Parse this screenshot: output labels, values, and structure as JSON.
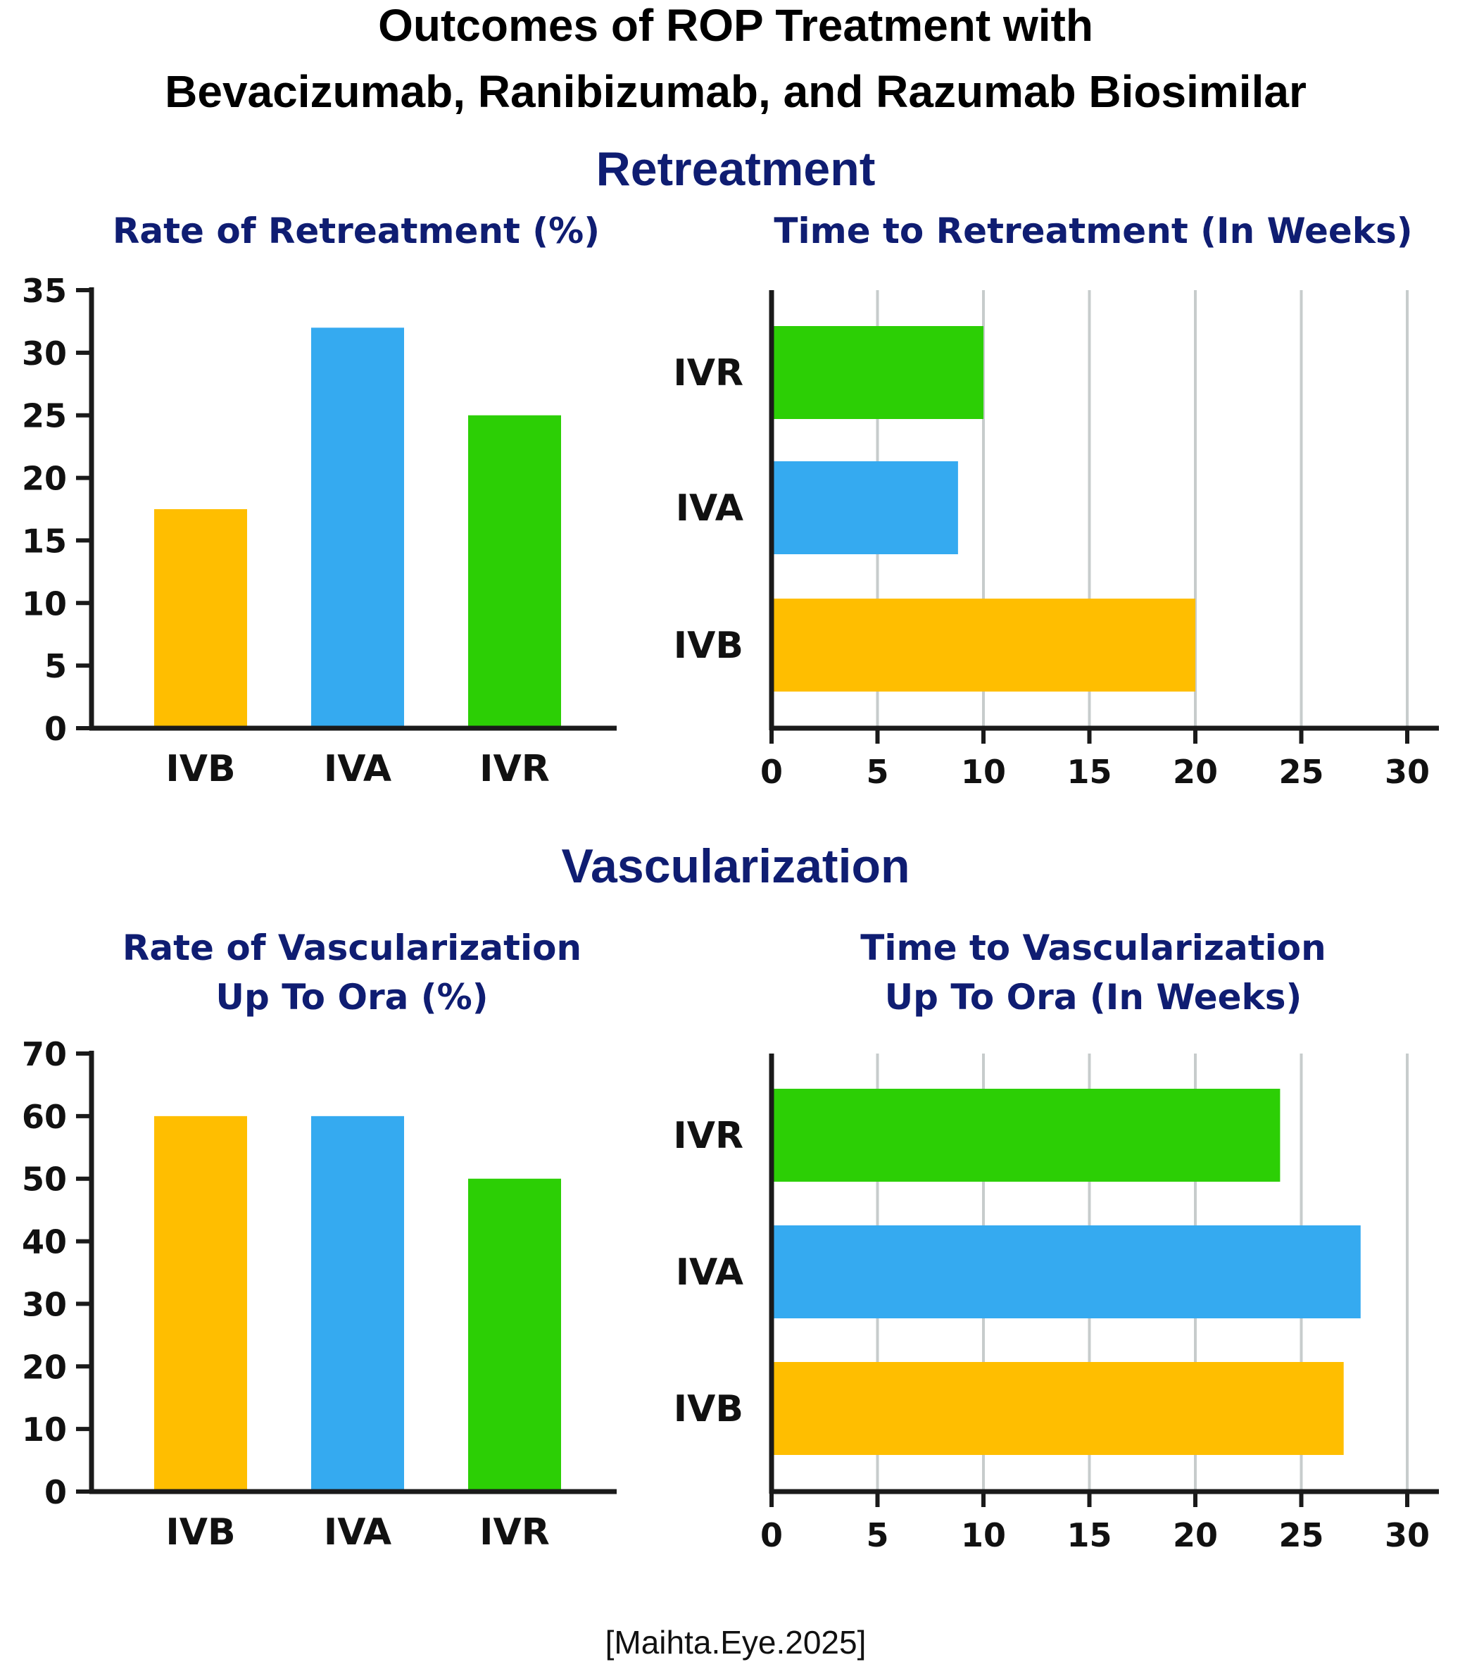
{
  "figure": {
    "title_line1": "Outcomes of ROP Treatment with",
    "title_line2": "Bevacizumab, Ranibizumab, and Razumab Biosimilar",
    "section_retreatment": "Retreatment",
    "section_vascularization": "Vascularization",
    "credit": "[Maihta.Eye.2025]"
  },
  "colors": {
    "IVB": "#ffbe00",
    "IVA": "#35aaf0",
    "IVR": "#2ccf05",
    "axis": "#1a1a1a",
    "grid": "#c7cccc",
    "section_text": "#0f1d72"
  },
  "chart_data": [
    {
      "id": "rate-retreatment",
      "type": "bar",
      "title": "Rate of Retreatment (%)",
      "title_lines": [
        "Rate of Retreatment (%)"
      ],
      "categories": [
        "IVB",
        "IVA",
        "IVR"
      ],
      "values": [
        17.5,
        32,
        25
      ],
      "ylim": [
        0,
        35
      ],
      "yticks": [
        0,
        5,
        10,
        15,
        20,
        25,
        30,
        35
      ],
      "xlabel": "",
      "ylabel": "",
      "grid": false
    },
    {
      "id": "time-retreatment",
      "type": "bar",
      "orientation": "horizontal",
      "title": "Time to Retreatment (In Weeks)",
      "title_lines": [
        "Time to Retreatment (In Weeks)"
      ],
      "categories": [
        "IVR",
        "IVA",
        "IVB"
      ],
      "values": [
        10,
        8.8,
        20
      ],
      "xlim": [
        0,
        30
      ],
      "xticks": [
        0,
        5,
        10,
        15,
        20,
        25,
        30
      ],
      "xlabel": "",
      "ylabel": "",
      "grid": true
    },
    {
      "id": "rate-vascularization",
      "type": "bar",
      "title": "Rate of Vascularization Up To Ora (%)",
      "title_lines": [
        "Rate of Vascularization",
        "Up To Ora (%)"
      ],
      "categories": [
        "IVB",
        "IVA",
        "IVR"
      ],
      "values": [
        60,
        60,
        50
      ],
      "ylim": [
        0,
        70
      ],
      "yticks": [
        0,
        10,
        20,
        30,
        40,
        50,
        60,
        70
      ],
      "xlabel": "",
      "ylabel": "",
      "grid": false
    },
    {
      "id": "time-vascularization",
      "type": "bar",
      "orientation": "horizontal",
      "title": "Time to Vascularization Up To Ora (In Weeks)",
      "title_lines": [
        "Time to Vascularization",
        "Up To Ora (In Weeks)"
      ],
      "categories": [
        "IVR",
        "IVA",
        "IVB"
      ],
      "values": [
        24,
        27.8,
        27
      ],
      "xlim": [
        0,
        30
      ],
      "xticks": [
        0,
        5,
        10,
        15,
        20,
        25,
        30
      ],
      "xlabel": "",
      "ylabel": "",
      "grid": true
    }
  ]
}
